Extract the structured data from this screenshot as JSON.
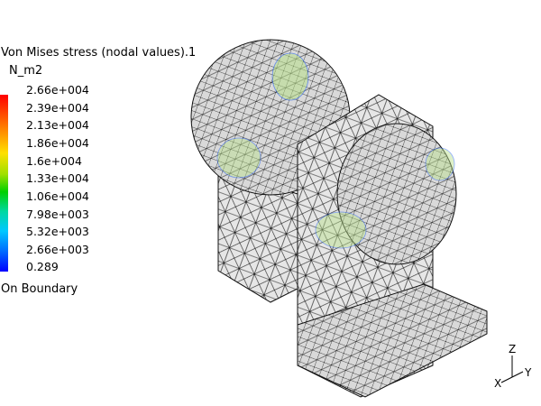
{
  "legend": {
    "title": "Von Mises stress (nodal values).1",
    "unit": "N_m2",
    "labels": [
      "2.66e+004",
      "2.39e+004",
      "2.13e+004",
      "1.86e+004",
      "1.6e+004",
      "1.33e+004",
      "1.06e+004",
      "7.98e+003",
      "5.32e+003",
      "2.66e+003",
      "0.289"
    ],
    "footer": "On Boundary"
  },
  "axes": {
    "z": "Z",
    "y": "Y",
    "x": "X"
  },
  "colors": {
    "background": "#ffffff",
    "mesh_fill": "#e4e4e4",
    "mesh_edge": "#111111",
    "stress_max": "#ff0000",
    "stress_min": "#0000ff"
  }
}
